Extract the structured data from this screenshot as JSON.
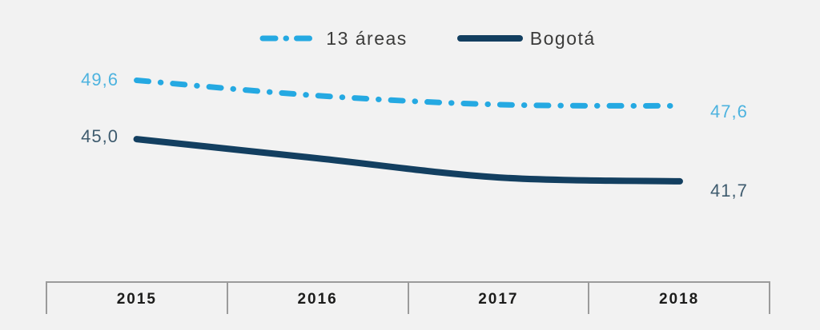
{
  "colors": {
    "background": "#F2F2F2",
    "axis_line": "#9B9B9B",
    "year_text": "#1C1C1B",
    "legend_text": "#3B3B3A",
    "label_13areas": "#4DB3DF",
    "label_bogota": "#3E5B6E"
  },
  "legend": {
    "items": [
      {
        "label": "13 áreas"
      },
      {
        "label": "Bogotá"
      }
    ]
  },
  "value_labels": {
    "areas_start": "49,6",
    "areas_end": "47,6",
    "bogota_start": "45,0",
    "bogota_end": "41,7"
  },
  "chart_data": {
    "type": "line",
    "categories": [
      "2015",
      "2016",
      "2017",
      "2018"
    ],
    "series": [
      {
        "name": "13 áreas",
        "color": "#25A9E2",
        "line_style": "dash-dot",
        "stroke_width": 7,
        "values": [
          49.6,
          48.4,
          47.7,
          47.6
        ],
        "labeled_points": {
          "2015": "49,6",
          "2018": "47,6"
        }
      },
      {
        "name": "Bogotá",
        "color": "#133F60",
        "line_style": "solid",
        "stroke_width": 8,
        "values": [
          45.0,
          43.5,
          42.0,
          41.7
        ],
        "labeled_points": {
          "2015": "45,0",
          "2018": "41,7"
        }
      }
    ],
    "title": "",
    "xlabel": "",
    "ylabel": "",
    "legend_position": "top-center",
    "grid": false,
    "y_axis_visible": false
  }
}
